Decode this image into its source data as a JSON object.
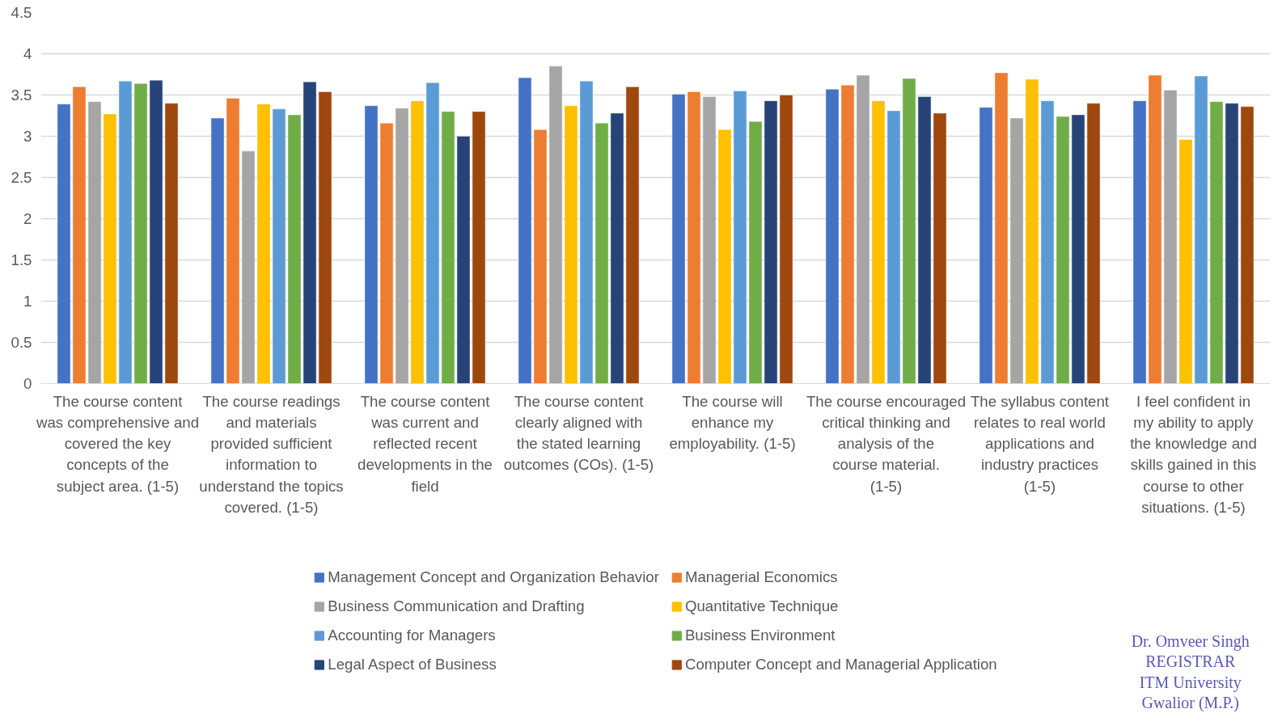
{
  "chart_data": {
    "type": "bar",
    "categories": [
      "The course content was comprehensive and covered the key concepts of the subject area. (1-5)",
      "The course readings and materials provided sufficient information to understand the topics covered. (1-5)",
      "The course content was current and reflected recent developments in the field",
      "The course content clearly aligned with the stated learning outcomes (COs). (1-5)",
      "The course will enhance my employability. (1-5)",
      "The course encouraged critical thinking and analysis of the course material. (1-5)",
      "The syllabus content relates to real world applications and industry practices (1-5)",
      "I feel confident in my ability to apply the knowledge and skills gained in this course to other situations. (1-5)"
    ],
    "series": [
      {
        "name": "Management Concept and Organization Behavior",
        "color": "#4472c4",
        "values": [
          3.39,
          3.22,
          3.37,
          3.71,
          3.51,
          3.57,
          3.35,
          3.43
        ]
      },
      {
        "name": "Managerial Economics",
        "color": "#ed7d31",
        "values": [
          3.6,
          3.46,
          3.16,
          3.08,
          3.54,
          3.62,
          3.77,
          3.74
        ]
      },
      {
        "name": "Business Communication and Drafting",
        "color": "#a5a5a5",
        "values": [
          3.42,
          2.82,
          3.34,
          3.85,
          3.48,
          3.74,
          3.22,
          3.56
        ]
      },
      {
        "name": "Quantitative Technique",
        "color": "#ffc000",
        "values": [
          3.27,
          3.39,
          3.43,
          3.37,
          3.08,
          3.43,
          3.69,
          2.96
        ]
      },
      {
        "name": "Accounting for Managers",
        "color": "#5b9bd5",
        "values": [
          3.67,
          3.33,
          3.65,
          3.67,
          3.55,
          3.31,
          3.43,
          3.73
        ]
      },
      {
        "name": "Business Environment",
        "color": "#70ad47",
        "values": [
          3.64,
          3.26,
          3.3,
          3.16,
          3.18,
          3.7,
          3.24,
          3.42
        ]
      },
      {
        "name": "Legal Aspect of Business",
        "color": "#264478",
        "values": [
          3.68,
          3.66,
          3.0,
          3.28,
          3.43,
          3.48,
          3.26,
          3.4
        ]
      },
      {
        "name": "Computer Concept and Managerial Application",
        "color": "#9e480e",
        "values": [
          3.4,
          3.54,
          3.3,
          3.6,
          3.5,
          3.28,
          3.4,
          3.36
        ]
      }
    ],
    "ylim": [
      0,
      4.5
    ],
    "yticks": [
      0,
      0.5,
      1,
      1.5,
      2,
      2.5,
      3,
      3.5,
      4,
      4.5
    ],
    "grid": "y",
    "legend": "bottom",
    "annotations": [
      "Dr. Omveer Singh",
      "REGISTRAR",
      "ITM University",
      "Gwalior (M.P.)"
    ]
  }
}
